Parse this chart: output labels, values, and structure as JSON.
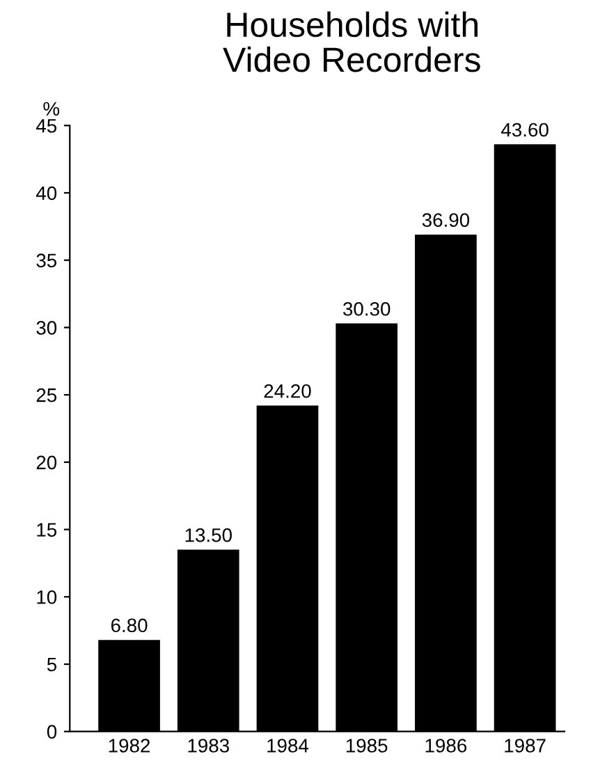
{
  "chart_data": {
    "type": "bar",
    "title": "Households with\nVideo Recorders",
    "ylabel": "%",
    "categories": [
      "1982",
      "1983",
      "1984",
      "1985",
      "1986",
      "1987"
    ],
    "values": [
      6.8,
      13.5,
      24.2,
      30.3,
      36.9,
      43.6
    ],
    "value_labels": [
      "6.80",
      "13.50",
      "24.20",
      "30.30",
      "36.90",
      "43.60"
    ],
    "color": "#000000",
    "ylim": [
      0,
      45
    ],
    "yticks": [
      0,
      5,
      10,
      15,
      20,
      25,
      30,
      35,
      40,
      45
    ],
    "grid": false
  }
}
